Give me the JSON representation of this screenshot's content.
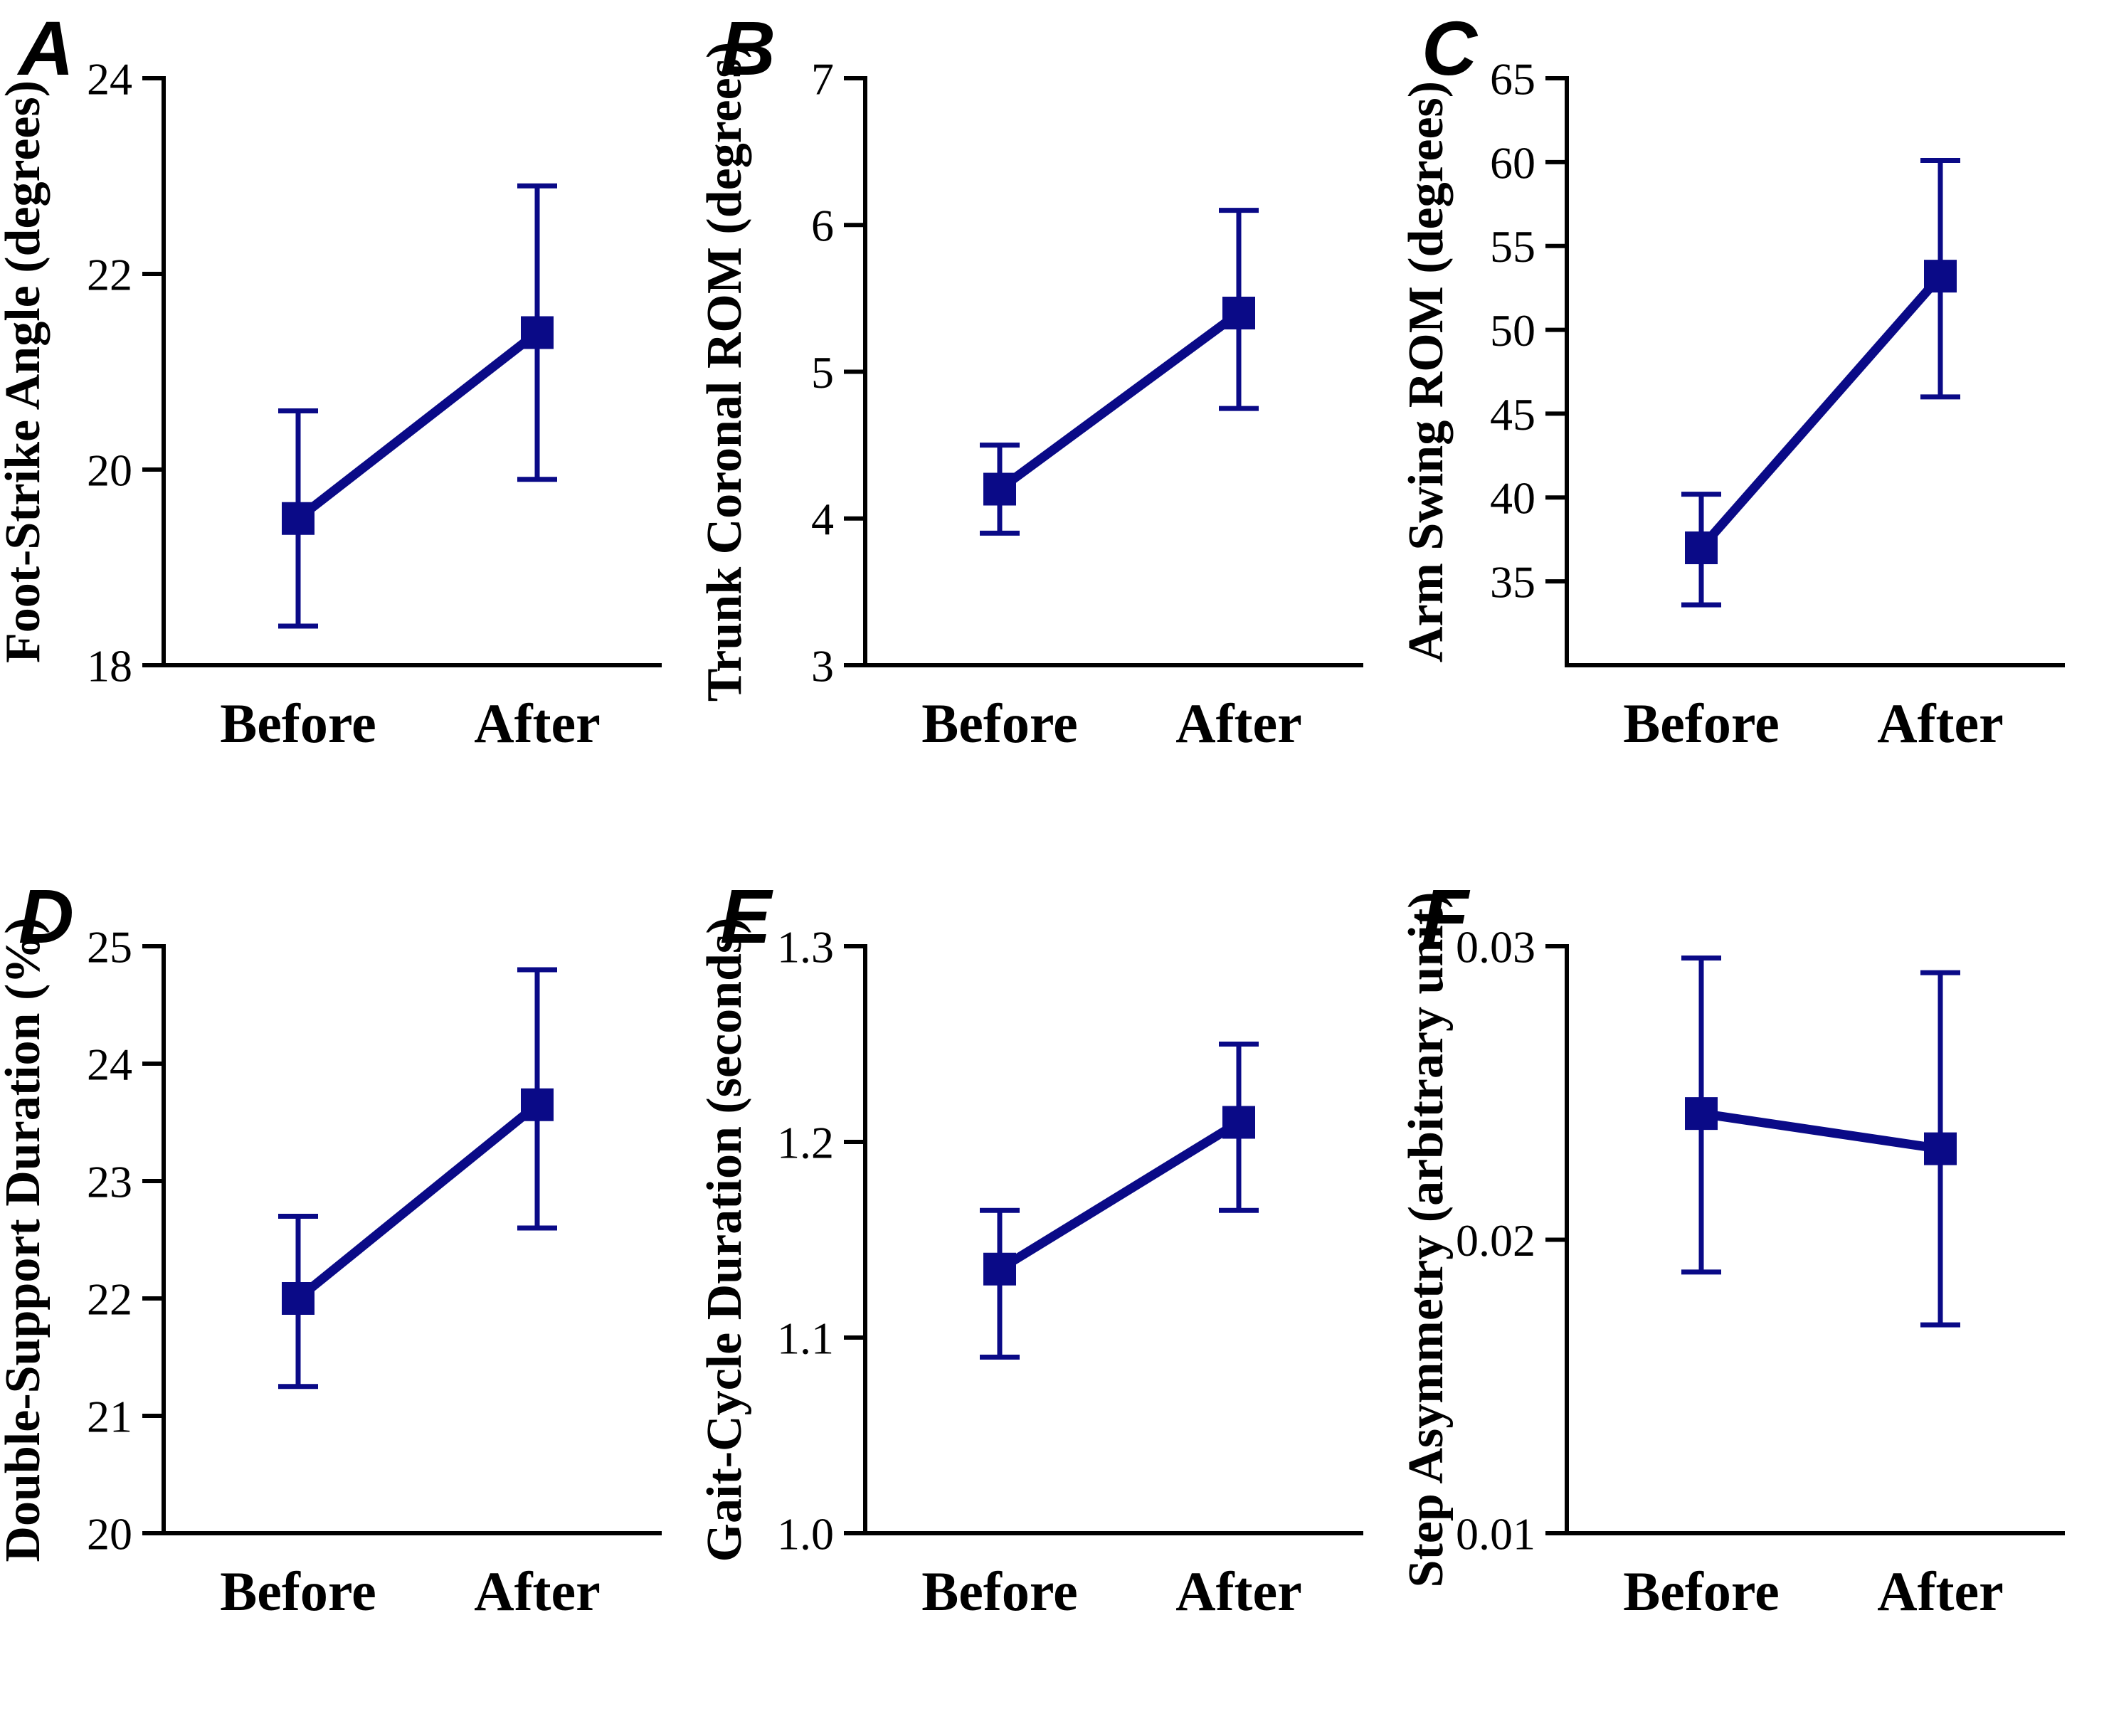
{
  "style": {
    "data_color": "#0a0a87",
    "axis_color": "#000000",
    "background_color": "#ffffff",
    "marker_shape": "square"
  },
  "chart_data": [
    {
      "panel_label": "A",
      "type": "line",
      "ylabel": "Foot-Strike Angle (degrees)",
      "categories": [
        "Before",
        "After"
      ],
      "ylim": [
        18,
        24
      ],
      "grid": false,
      "yticks": [
        {
          "value": 18,
          "label": "18"
        },
        {
          "value": 20,
          "label": "20"
        },
        {
          "value": 22,
          "label": "22"
        },
        {
          "value": 24,
          "label": "24"
        }
      ],
      "points": [
        {
          "category": "Before",
          "mean": 19.5,
          "ci_low": 18.4,
          "ci_high": 20.6
        },
        {
          "category": "After",
          "mean": 21.4,
          "ci_low": 19.9,
          "ci_high": 22.9
        }
      ]
    },
    {
      "panel_label": "B",
      "type": "line",
      "ylabel": "Trunk Coronal ROM (degrees)",
      "categories": [
        "Before",
        "After"
      ],
      "ylim": [
        3,
        7
      ],
      "grid": false,
      "yticks": [
        {
          "value": 3,
          "label": "3"
        },
        {
          "value": 4,
          "label": "4"
        },
        {
          "value": 5,
          "label": "5"
        },
        {
          "value": 6,
          "label": "6"
        },
        {
          "value": 7,
          "label": "7"
        }
      ],
      "points": [
        {
          "category": "Before",
          "mean": 4.2,
          "ci_low": 3.9,
          "ci_high": 4.5
        },
        {
          "category": "After",
          "mean": 5.4,
          "ci_low": 4.75,
          "ci_high": 6.1
        }
      ]
    },
    {
      "panel_label": "C",
      "type": "line",
      "ylabel": "Arm Swing ROM (degrees)",
      "categories": [
        "Before",
        "After"
      ],
      "ylim": [
        30,
        65
      ],
      "grid": false,
      "yticks": [
        {
          "value": 35,
          "label": "35"
        },
        {
          "value": 40,
          "label": "40"
        },
        {
          "value": 45,
          "label": "45"
        },
        {
          "value": 50,
          "label": "50"
        },
        {
          "value": 55,
          "label": "55"
        },
        {
          "value": 60,
          "label": "60"
        },
        {
          "value": 65,
          "label": "65"
        }
      ],
      "points": [
        {
          "category": "Before",
          "mean": 37.0,
          "ci_low": 33.6,
          "ci_high": 40.2
        },
        {
          "category": "After",
          "mean": 53.2,
          "ci_low": 46.0,
          "ci_high": 60.1
        }
      ]
    },
    {
      "panel_label": "D",
      "type": "line",
      "ylabel": "Double-Support Duration (%)",
      "categories": [
        "Before",
        "After"
      ],
      "ylim": [
        20,
        25
      ],
      "grid": false,
      "yticks": [
        {
          "value": 20,
          "label": "20"
        },
        {
          "value": 21,
          "label": "21"
        },
        {
          "value": 22,
          "label": "22"
        },
        {
          "value": 23,
          "label": "23"
        },
        {
          "value": 24,
          "label": "24"
        },
        {
          "value": 25,
          "label": "25"
        }
      ],
      "points": [
        {
          "category": "Before",
          "mean": 22.0,
          "ci_low": 21.25,
          "ci_high": 22.7
        },
        {
          "category": "After",
          "mean": 23.65,
          "ci_low": 22.6,
          "ci_high": 24.8
        }
      ]
    },
    {
      "panel_label": "E",
      "type": "line",
      "ylabel": "Gait-Cycle Duration (seconds)",
      "categories": [
        "Before",
        "After"
      ],
      "ylim": [
        1.0,
        1.3
      ],
      "grid": false,
      "yticks": [
        {
          "value": 1.0,
          "label": "1.0"
        },
        {
          "value": 1.1,
          "label": "1.1"
        },
        {
          "value": 1.2,
          "label": "1.2"
        },
        {
          "value": 1.3,
          "label": "1.3"
        }
      ],
      "points": [
        {
          "category": "Before",
          "mean": 1.135,
          "ci_low": 1.09,
          "ci_high": 1.165
        },
        {
          "category": "After",
          "mean": 1.21,
          "ci_low": 1.165,
          "ci_high": 1.25
        }
      ]
    },
    {
      "panel_label": "F",
      "type": "line",
      "ylabel": "Step Asymmetry (arbitrary unit)",
      "categories": [
        "Before",
        "After"
      ],
      "ylim": [
        0.01,
        0.03
      ],
      "grid": false,
      "yticks": [
        {
          "value": 0.01,
          "label": "0.01"
        },
        {
          "value": 0.02,
          "label": "0.02"
        },
        {
          "value": 0.03,
          "label": "0.03"
        }
      ],
      "points": [
        {
          "category": "Before",
          "mean": 0.0243,
          "ci_low": 0.0189,
          "ci_high": 0.0296
        },
        {
          "category": "After",
          "mean": 0.0231,
          "ci_low": 0.0171,
          "ci_high": 0.0291
        }
      ]
    }
  ]
}
